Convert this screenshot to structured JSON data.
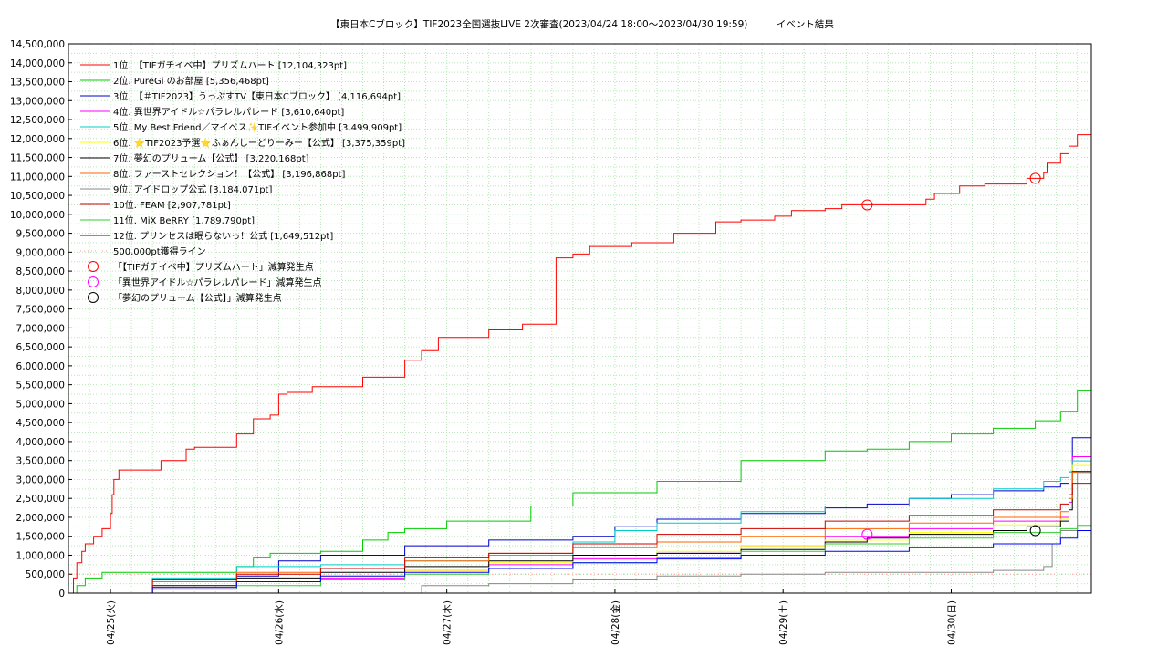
{
  "chart_data": {
    "type": "line",
    "title": "【東日本Cブロック】TIF2023全国選抜LIVE 2次審査(2023/04/24 18:00～2023/04/30 19:59)　　　イベント結果",
    "xlabel": "",
    "ylabel": "",
    "ylim": [
      0,
      14500000
    ],
    "yticks": [
      "0",
      "500,000",
      "1,000,000",
      "1,500,000",
      "2,000,000",
      "2,500,000",
      "3,000,000",
      "3,500,000",
      "4,000,000",
      "4,500,000",
      "5,000,000",
      "5,500,000",
      "6,000,000",
      "6,500,000",
      "7,000,000",
      "7,500,000",
      "8,000,000",
      "8,500,000",
      "9,000,000",
      "9,500,000",
      "10,000,000",
      "10,500,000",
      "11,000,000",
      "11,500,000",
      "12,000,000",
      "12,500,000",
      "13,000,000",
      "13,500,000",
      "14,000,000",
      "14,500,000"
    ],
    "xlim": [
      0,
      6.083
    ],
    "x_unit": "days since 2023/04/24 18:00",
    "xticks": [
      {
        "x": 0.25,
        "label": "04/25(火)"
      },
      {
        "x": 1.25,
        "label": "04/26(水)"
      },
      {
        "x": 2.25,
        "label": "04/27(木)"
      },
      {
        "x": 3.25,
        "label": "04/28(金)"
      },
      {
        "x": 4.25,
        "label": "04/29(土)"
      },
      {
        "x": 5.25,
        "label": "04/30(日)"
      }
    ],
    "grid": true,
    "legend_position": "top-left",
    "series": [
      {
        "name": "1位. 【TIFガチイベ中】プリズムハート [12,104,323pt]",
        "color": "#ff0000",
        "x": [
          0,
          0.03,
          0.05,
          0.08,
          0.1,
          0.15,
          0.2,
          0.25,
          0.26,
          0.27,
          0.3,
          0.35,
          0.45,
          0.55,
          0.7,
          0.75,
          0.95,
          1.0,
          1.1,
          1.2,
          1.25,
          1.3,
          1.35,
          1.45,
          1.6,
          1.75,
          1.95,
          2.0,
          2.1,
          2.2,
          2.35,
          2.5,
          2.7,
          2.9,
          3.0,
          3.1,
          3.35,
          3.6,
          3.85,
          4.0,
          4.2,
          4.3,
          4.5,
          4.6,
          5.0,
          5.1,
          5.15,
          5.3,
          5.4,
          5.45,
          5.7,
          5.8,
          5.82,
          5.9,
          5.95,
          6.0,
          6.083
        ],
        "values": [
          0,
          400000,
          800000,
          1100000,
          1300000,
          1500000,
          1700000,
          2100000,
          2600000,
          3000000,
          3250000,
          3250000,
          3250000,
          3500000,
          3800000,
          3850000,
          3850000,
          4200000,
          4600000,
          4700000,
          5250000,
          5300000,
          5300000,
          5450000,
          5450000,
          5700000,
          5700000,
          6150000,
          6400000,
          6750000,
          6750000,
          6950000,
          7100000,
          8850000,
          8950000,
          9150000,
          9250000,
          9500000,
          9800000,
          9850000,
          9950000,
          10100000,
          10150000,
          10250000,
          10250000,
          10400000,
          10550000,
          10750000,
          10750000,
          10800000,
          10950000,
          11100000,
          11350000,
          11600000,
          11800000,
          12100000,
          12104323
        ]
      },
      {
        "name": "2位. PureGi のお部屋 [5,356,468pt]",
        "color": "#00cc00",
        "x": [
          0,
          0.05,
          0.1,
          0.2,
          0.5,
          1.0,
          1.1,
          1.2,
          1.5,
          1.75,
          1.9,
          2.0,
          2.25,
          2.75,
          3.0,
          3.5,
          4.0,
          4.5,
          4.75,
          5.0,
          5.25,
          5.5,
          5.75,
          5.9,
          6.0,
          6.083
        ],
        "values": [
          0,
          200000,
          400000,
          550000,
          550000,
          700000,
          950000,
          1050000,
          1100000,
          1400000,
          1600000,
          1700000,
          1900000,
          2300000,
          2650000,
          2950000,
          3500000,
          3750000,
          3800000,
          4000000,
          4200000,
          4350000,
          4550000,
          4800000,
          5356468,
          5356468
        ]
      },
      {
        "name": "3位. 【＃TIF2023】うっぷすTV【東日本Cブロック】 [4,116,694pt]",
        "color": "#0000cc",
        "x": [
          0,
          0.5,
          1.0,
          1.25,
          1.5,
          2.0,
          2.5,
          3.0,
          3.25,
          3.5,
          4.0,
          4.5,
          4.75,
          5.0,
          5.25,
          5.5,
          5.8,
          5.9,
          5.95,
          5.97,
          6.083
        ],
        "values": [
          0,
          150000,
          450000,
          850000,
          1000000,
          1250000,
          1400000,
          1500000,
          1750000,
          1950000,
          2100000,
          2250000,
          2350000,
          2500000,
          2600000,
          2700000,
          2800000,
          2900000,
          3200000,
          4100000,
          4116694
        ]
      },
      {
        "name": "4位. 異世界アイドル☆パラレルパレード [3,610,640pt]",
        "color": "#ff00ff",
        "x": [
          0,
          0.5,
          1.0,
          1.5,
          2.0,
          2.5,
          3.0,
          3.5,
          4.0,
          4.5,
          5.0,
          5.5,
          5.9,
          5.95,
          5.97,
          6.083
        ],
        "values": [
          0,
          150000,
          300000,
          400000,
          600000,
          750000,
          900000,
          1050000,
          1250000,
          1500000,
          1700000,
          1900000,
          2000000,
          2400000,
          3600000,
          3610640
        ]
      },
      {
        "name": "5位. My Best Friend／マイベス✨TIFイベント参加中 [3,499,909pt]",
        "color": "#00cccc",
        "x": [
          0,
          0.5,
          1.0,
          1.5,
          2.0,
          2.5,
          3.0,
          3.25,
          3.5,
          4.0,
          4.5,
          5.0,
          5.5,
          5.8,
          5.9,
          5.95,
          5.97,
          6.083
        ],
        "values": [
          0,
          400000,
          700000,
          750000,
          850000,
          1000000,
          1350000,
          1650000,
          1850000,
          2150000,
          2300000,
          2500000,
          2750000,
          2950000,
          3050000,
          3200000,
          3490000,
          3499909
        ]
      },
      {
        "name": "6位. ⭐TIF2023予選⭐ふぁんしーどりーみー【公式】 [3,375,359pt]",
        "color": "#ffff00",
        "x": [
          0,
          0.5,
          1.0,
          1.5,
          2.0,
          2.5,
          3.0,
          3.5,
          4.0,
          4.5,
          5.0,
          5.5,
          5.9,
          5.95,
          5.97,
          6.083
        ],
        "values": [
          0,
          150000,
          300000,
          450000,
          600000,
          800000,
          950000,
          1100000,
          1250000,
          1400000,
          1600000,
          1800000,
          1950000,
          2300000,
          3370000,
          3375359
        ]
      },
      {
        "name": "7位. 夢幻のプリューム【公式】 [3,220,168pt]",
        "color": "#000000",
        "x": [
          0,
          0.5,
          1.0,
          1.5,
          2.0,
          2.5,
          3.0,
          3.5,
          4.0,
          4.5,
          4.75,
          5.0,
          5.5,
          5.7,
          5.9,
          5.95,
          5.97,
          6.083
        ],
        "values": [
          0,
          200000,
          400000,
          550000,
          700000,
          850000,
          1000000,
          1050000,
          1150000,
          1350000,
          1450000,
          1550000,
          1650000,
          1750000,
          1900000,
          2200000,
          3210000,
          3220168
        ]
      },
      {
        "name": "8位. ファーストセレクション！【公式】 [3,196,868pt]",
        "color": "#ff6600",
        "x": [
          0,
          0.5,
          1.0,
          1.5,
          2.0,
          2.5,
          3.0,
          3.5,
          4.0,
          4.5,
          5.0,
          5.5,
          5.9,
          5.95,
          5.97,
          6.083
        ],
        "values": [
          0,
          300000,
          550000,
          650000,
          850000,
          1050000,
          1200000,
          1350000,
          1500000,
          1700000,
          1850000,
          2000000,
          2150000,
          2500000,
          3190000,
          3196868
        ]
      },
      {
        "name": "9位. アイドロップ公式 [3,184,071pt]",
        "color": "#888888",
        "x": [
          0,
          1.0,
          2.0,
          2.1,
          2.5,
          3.0,
          3.5,
          4.0,
          4.5,
          5.0,
          5.5,
          5.8,
          5.85,
          5.9,
          6.0,
          6.083
        ],
        "values": [
          0,
          0,
          0,
          200000,
          250000,
          350000,
          450000,
          500000,
          550000,
          550000,
          600000,
          700000,
          1300000,
          1650000,
          3184071,
          3184071
        ]
      },
      {
        "name": "10位. FEAM [2,907,781pt]",
        "color": "#cc0000",
        "x": [
          0,
          0.5,
          1.0,
          1.5,
          2.0,
          2.5,
          3.0,
          3.5,
          4.0,
          4.5,
          5.0,
          5.5,
          5.9,
          5.95,
          5.97,
          6.083
        ],
        "values": [
          0,
          350000,
          500000,
          650000,
          950000,
          1050000,
          1300000,
          1550000,
          1700000,
          1900000,
          2050000,
          2200000,
          2350000,
          2600000,
          2900000,
          2907781
        ]
      },
      {
        "name": "11位. MiX BeRRY [1,789,790pt]",
        "color": "#33cc33",
        "x": [
          0,
          0.5,
          1.0,
          1.5,
          2.0,
          2.5,
          3.0,
          3.5,
          4.0,
          4.5,
          5.0,
          5.5,
          5.9,
          6.0,
          6.083
        ],
        "values": [
          0,
          100000,
          200000,
          350000,
          500000,
          650000,
          800000,
          950000,
          1100000,
          1300000,
          1450000,
          1600000,
          1700000,
          1789790,
          1789790
        ]
      },
      {
        "name": "12位. プリンセスは眠らないっ！公式 [1,649,512pt]",
        "color": "#0000ff",
        "x": [
          0,
          0.5,
          1.0,
          1.5,
          2.0,
          2.5,
          3.0,
          3.5,
          4.0,
          4.5,
          5.0,
          5.5,
          5.9,
          6.0,
          6.083
        ],
        "values": [
          0,
          150000,
          300000,
          450000,
          550000,
          650000,
          800000,
          900000,
          1000000,
          1100000,
          1200000,
          1300000,
          1450000,
          1649512,
          1649512
        ]
      }
    ],
    "reference_line": {
      "name": "500,000pt獲得ライン",
      "value": 500000,
      "color": "#ff9999"
    },
    "markers": [
      {
        "name": "「【TIFガチイベ中】プリズムハート」減算発生点",
        "color": "#ff0000",
        "points": [
          [
            4.75,
            10250000
          ],
          [
            5.75,
            10950000
          ]
        ]
      },
      {
        "name": "「異世界アイドル☆パラレルパレード」減算発生点",
        "color": "#ff00ff",
        "points": [
          [
            4.75,
            1550000
          ]
        ]
      },
      {
        "name": "「夢幻のプリューム【公式】」減算発生点",
        "color": "#000000",
        "points": [
          [
            5.75,
            1650000
          ]
        ]
      }
    ]
  }
}
